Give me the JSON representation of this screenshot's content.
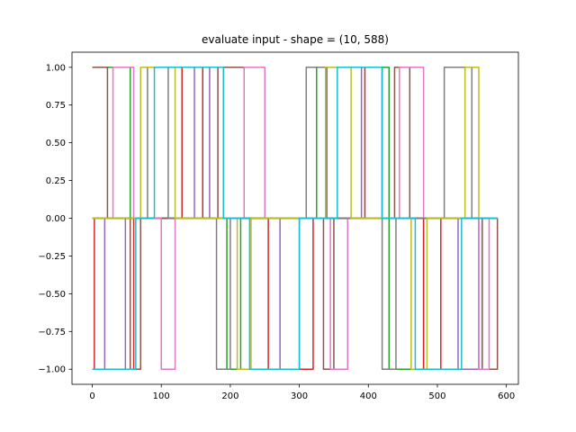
{
  "chart_data": {
    "type": "line",
    "title": "evaluate input - shape = (10, 588)",
    "xlabel": "",
    "ylabel": "",
    "xlim": [
      -29.4,
      617.4
    ],
    "ylim": [
      -1.1,
      1.1
    ],
    "x_ticks": [
      0,
      100,
      200,
      300,
      400,
      500,
      600
    ],
    "y_ticks": [
      -1.0,
      -0.75,
      -0.5,
      -0.25,
      0.0,
      0.25,
      0.5,
      0.75,
      1.0
    ],
    "x_tick_labels": [
      "0",
      "100",
      "200",
      "300",
      "400",
      "500",
      "600"
    ],
    "y_tick_labels": [
      "−1.00",
      "−0.75",
      "−0.50",
      "−0.25",
      "0.00",
      "0.25",
      "0.50",
      "0.75",
      "1.00"
    ],
    "grid": false,
    "legend": "none",
    "x_max": 587,
    "series": [
      {
        "color": "#1f77b4",
        "steps": [
          [
            0,
            0
          ]
        ]
      },
      {
        "color": "#ff7f0e",
        "steps": [
          [
            0,
            0
          ]
        ]
      },
      {
        "color": "#2ca02c",
        "steps": [
          [
            0,
            1
          ],
          [
            55,
            0
          ],
          [
            195,
            -1
          ],
          [
            215,
            0
          ],
          [
            325,
            1
          ],
          [
            430,
            -1
          ],
          [
            480,
            0
          ]
        ]
      },
      {
        "color": "#d62728",
        "steps": [
          [
            0,
            0
          ],
          [
            3,
            -1
          ],
          [
            60,
            0
          ],
          [
            130,
            1
          ],
          [
            160,
            0
          ],
          [
            255,
            -1
          ],
          [
            320,
            0
          ],
          [
            395,
            1
          ],
          [
            420,
            0
          ],
          [
            480,
            -1
          ],
          [
            505,
            0
          ]
        ]
      },
      {
        "color": "#9467bd",
        "steps": [
          [
            0,
            0
          ],
          [
            18,
            -1
          ],
          [
            48,
            0
          ],
          [
            148,
            1
          ],
          [
            170,
            0
          ],
          [
            272,
            -1
          ],
          [
            300,
            0
          ],
          [
            390,
            1
          ],
          [
            420,
            0
          ],
          [
            530,
            -1
          ],
          [
            560,
            0
          ]
        ]
      },
      {
        "color": "#8c564b",
        "steps": [
          [
            0,
            1
          ],
          [
            22,
            0
          ],
          [
            55,
            -1
          ],
          [
            70,
            0
          ],
          [
            182,
            1
          ],
          [
            220,
            0
          ],
          [
            335,
            -1
          ],
          [
            350,
            0
          ],
          [
            438,
            1
          ],
          [
            460,
            0
          ],
          [
            565,
            -1
          ],
          [
            587,
            0
          ]
        ]
      },
      {
        "color": "#e377c2",
        "steps": [
          [
            0,
            0
          ],
          [
            30,
            1
          ],
          [
            60,
            0
          ],
          [
            100,
            -1
          ],
          [
            120,
            0
          ],
          [
            220,
            1
          ],
          [
            250,
            0
          ],
          [
            345,
            -1
          ],
          [
            370,
            0
          ],
          [
            445,
            1
          ],
          [
            480,
            0
          ],
          [
            560,
            -1
          ],
          [
            575,
            0
          ]
        ]
      },
      {
        "color": "#7f7f7f",
        "steps": [
          [
            0,
            0
          ],
          [
            80,
            1
          ],
          [
            110,
            0
          ],
          [
            180,
            -1
          ],
          [
            200,
            0
          ],
          [
            310,
            1
          ],
          [
            340,
            0
          ],
          [
            420,
            -1
          ],
          [
            440,
            0
          ],
          [
            510,
            1
          ],
          [
            550,
            0
          ]
        ]
      },
      {
        "color": "#bcbd22",
        "steps": [
          [
            0,
            0
          ],
          [
            70,
            1
          ],
          [
            120,
            0
          ],
          [
            210,
            -1
          ],
          [
            230,
            0
          ],
          [
            338,
            1
          ],
          [
            375,
            0
          ],
          [
            462,
            -1
          ],
          [
            485,
            0
          ],
          [
            540,
            1
          ],
          [
            560,
            0
          ]
        ]
      },
      {
        "color": "#17becf",
        "steps": [
          [
            0,
            -1
          ],
          [
            63,
            0
          ],
          [
            90,
            1
          ],
          [
            190,
            0
          ],
          [
            228,
            -1
          ],
          [
            300,
            0
          ],
          [
            355,
            1
          ],
          [
            420,
            0
          ],
          [
            468,
            -1
          ],
          [
            535,
            0
          ]
        ]
      }
    ]
  }
}
